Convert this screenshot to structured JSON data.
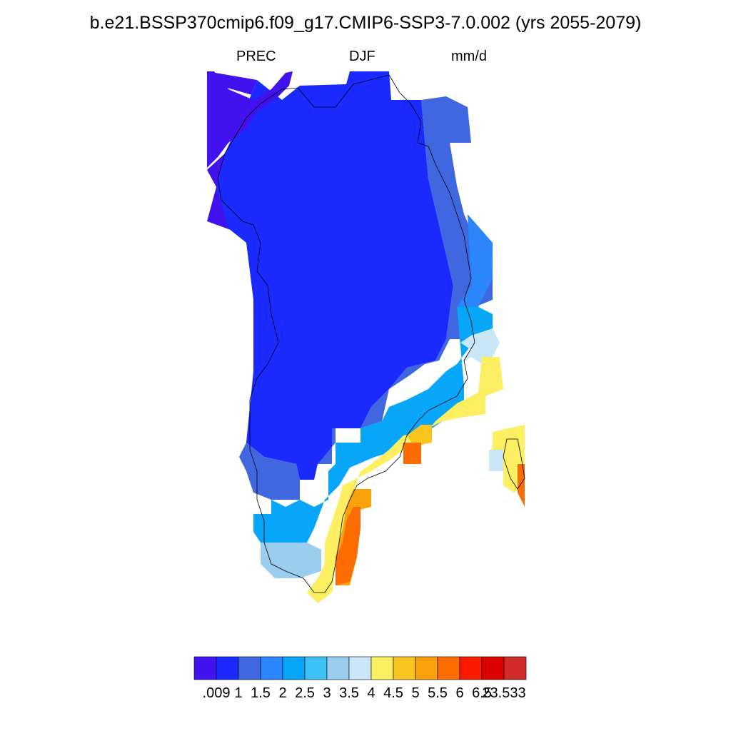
{
  "header": {
    "title": "b.e21.BSSP370cmip6.f09_g17.CMIP6-SSP3-7.0.002 (yrs 2055-2079)",
    "variable": "PREC",
    "season": "DJF",
    "units": "mm/d"
  },
  "colorbar": {
    "colors": [
      "#4111ee",
      "#1a2aff",
      "#4066e0",
      "#2a86fa",
      "#07a6f8",
      "#3cc2f6",
      "#9bcdef",
      "#c9e7f7",
      "#fdef62",
      "#fbc51f",
      "#fba10b",
      "#fb6d03",
      "#fb1c00",
      "#dc0000",
      "#d02a2a"
    ],
    "labels": [
      ".009",
      "1",
      "1.5",
      "2",
      "2.5",
      "3",
      "3.5",
      "4",
      "4.5",
      "5",
      "5.5",
      "6",
      "6.5",
      "23.533"
    ]
  },
  "map": {
    "region": "Greenland",
    "field": "DJF mean precipitation (mm/d), binned into colorbar levels"
  }
}
